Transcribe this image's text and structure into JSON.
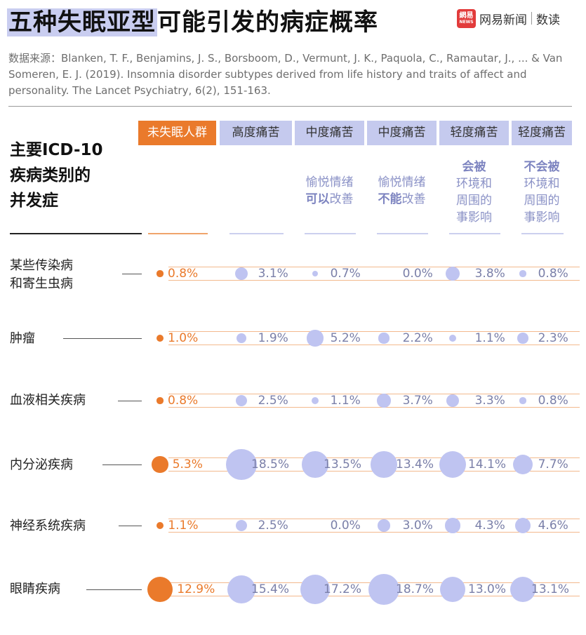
{
  "title": {
    "highlight": "五种失眠亚型",
    "rest": "可能引发的病症概率"
  },
  "brand": {
    "icon_top": "網易",
    "icon_bottom": "NEWS",
    "name": "网易新闻",
    "sub": "数读"
  },
  "source": "数据来源：Blanken, T. F., Benjamins, J. S., Borsboom, D., Vermunt, J. K., Paquola, C., Ramautar, J., ... & Van Someren, E. J. (2019). Insomnia disorder subtypes derived from life history and traits of affect and personality. The Lancet Psychiatry, 6(2), 151-163.",
  "colors": {
    "orange": "#ea7a2b",
    "lavender": "#bfc4f1",
    "header_lavender": "#c5caee",
    "subtitle": "#8a91c6"
  },
  "chart_data": {
    "type": "bubble-table",
    "title": "五种失眠亚型可能引发的病症概率",
    "row_axis_label": "主要ICD-10\n疾病类别的\n并发症",
    "columns": [
      {
        "header": "未失眠人群",
        "sub_pre": "",
        "sub_bold": "",
        "sub_post": ""
      },
      {
        "header": "高度痛苦",
        "sub_pre": "",
        "sub_bold": "",
        "sub_post": ""
      },
      {
        "header": "中度痛苦",
        "sub_pre": "愉悦情绪\n",
        "sub_bold": "可以",
        "sub_post": "改善"
      },
      {
        "header": "中度痛苦",
        "sub_pre": "愉悦情绪\n",
        "sub_bold": "不能",
        "sub_post": "改善"
      },
      {
        "header": "轻度痛苦",
        "sub_pre": "",
        "sub_bold": "会被",
        "sub_post": "\n环境和\n周围的\n事影响"
      },
      {
        "header": "轻度痛苦",
        "sub_pre": "",
        "sub_bold": "不会被",
        "sub_post": "\n环境和\n周围的\n事影响"
      }
    ],
    "rows": [
      {
        "label": "某些传染病\n和寄生虫病",
        "values": [
          0.8,
          3.1,
          0.7,
          0.0,
          3.8,
          0.8
        ],
        "labels": [
          "0.8%",
          "3.1%",
          "0.7%",
          "0.0%",
          "3.8%",
          "0.8%"
        ]
      },
      {
        "label": "肿瘤",
        "values": [
          1.0,
          1.9,
          5.2,
          2.2,
          1.1,
          2.3
        ],
        "labels": [
          "1.0%",
          "1.9%",
          "5.2%",
          "2.2%",
          "1.1%",
          "2.3%"
        ]
      },
      {
        "label": "血液相关疾病",
        "values": [
          0.8,
          2.5,
          1.1,
          3.7,
          3.3,
          0.8
        ],
        "labels": [
          "0.8%",
          "2.5%",
          "1.1%",
          "3.7%",
          "3.3%",
          "0.8%"
        ]
      },
      {
        "label": "内分泌疾病",
        "values": [
          5.3,
          18.5,
          13.5,
          13.4,
          14.1,
          7.7
        ],
        "labels": [
          "5.3%",
          "18.5%",
          "13.5%",
          "13.4%",
          "14.1%",
          "7.7%"
        ]
      },
      {
        "label": "神经系统疾病",
        "values": [
          1.1,
          2.5,
          0.0,
          3.0,
          4.3,
          4.6
        ],
        "labels": [
          "1.1%",
          "2.5%",
          "0.0%",
          "3.0%",
          "4.3%",
          "4.6%"
        ]
      },
      {
        "label": "眼睛疾病",
        "values": [
          12.9,
          15.4,
          17.2,
          18.7,
          13.0,
          13.1
        ],
        "labels": [
          "12.9%",
          "15.4%",
          "17.2%",
          "18.7%",
          "13.0%",
          "13.1%"
        ]
      }
    ],
    "unit": "%"
  }
}
